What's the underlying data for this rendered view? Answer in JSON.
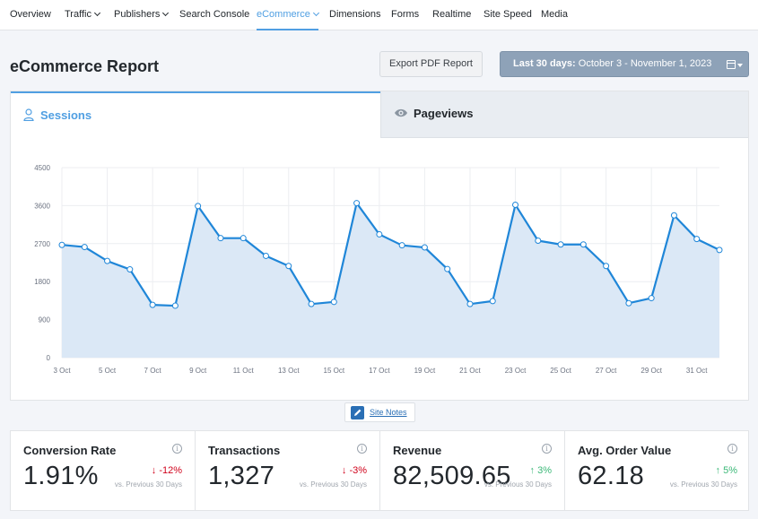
{
  "nav": {
    "items": [
      {
        "label": "Overview"
      },
      {
        "label": "Traffic"
      },
      {
        "label": "Publishers"
      },
      {
        "label": "Search Console"
      },
      {
        "label": "eCommerce"
      },
      {
        "label": "Dimensions"
      },
      {
        "label": "Forms"
      },
      {
        "label": "Realtime"
      },
      {
        "label": "Site Speed"
      },
      {
        "label": "Media"
      }
    ],
    "active": "eCommerce"
  },
  "page_title": "eCommerce Report",
  "export_label": "Export PDF Report",
  "date_range": {
    "prefix": "Last 30 days:",
    "range": "October 3 - November 1, 2023"
  },
  "tabs": {
    "sessions": "Sessions",
    "pageviews": "Pageviews"
  },
  "colors": {
    "accent": "#509fe2",
    "line": "#1f86d8",
    "area": "#dbe8f6",
    "down": "#d0021b",
    "up": "#3cb878"
  },
  "chart_data": {
    "type": "area",
    "x": [
      "3 Oct",
      "4 Oct",
      "5 Oct",
      "6 Oct",
      "7 Oct",
      "8 Oct",
      "9 Oct",
      "10 Oct",
      "11 Oct",
      "12 Oct",
      "13 Oct",
      "14 Oct",
      "15 Oct",
      "16 Oct",
      "17 Oct",
      "18 Oct",
      "19 Oct",
      "20 Oct",
      "21 Oct",
      "22 Oct",
      "23 Oct",
      "24 Oct",
      "25 Oct",
      "26 Oct",
      "27 Oct",
      "28 Oct",
      "29 Oct",
      "30 Oct",
      "31 Oct",
      "1 Nov"
    ],
    "x_tick_labels": [
      "3 Oct",
      "5 Oct",
      "7 Oct",
      "9 Oct",
      "11 Oct",
      "13 Oct",
      "15 Oct",
      "17 Oct",
      "19 Oct",
      "21 Oct",
      "23 Oct",
      "25 Oct",
      "27 Oct",
      "29 Oct",
      "31 Oct"
    ],
    "series": [
      {
        "values": [
          2670,
          2620,
          2290,
          2090,
          1250,
          1230,
          3590,
          2830,
          2830,
          2410,
          2170,
          1270,
          1320,
          3660,
          2920,
          2660,
          2610,
          2100,
          1270,
          1340,
          3620,
          2770,
          2680,
          2680,
          2170,
          1290,
          1410,
          3370,
          2810,
          2550
        ]
      }
    ],
    "y_ticks": [
      0,
      900,
      1800,
      2700,
      3600,
      4500
    ],
    "ylim": [
      0,
      4500
    ],
    "grid": true
  },
  "site_notes_label": "Site Notes",
  "stats": [
    {
      "title": "Conversion Rate",
      "value": "1.91%",
      "change": "-12%",
      "direction": "down",
      "compare": "vs. Previous 30 Days"
    },
    {
      "title": "Transactions",
      "value": "1,327",
      "change": "-3%",
      "direction": "down",
      "compare": "vs. Previous 30 Days"
    },
    {
      "title": "Revenue",
      "value": "82,509.65",
      "change": "3%",
      "direction": "up",
      "compare": "vs. Previous 30 Days"
    },
    {
      "title": "Avg. Order Value",
      "value": "62.18",
      "change": "5%",
      "direction": "up",
      "compare": "vs. Previous 30 Days"
    }
  ]
}
